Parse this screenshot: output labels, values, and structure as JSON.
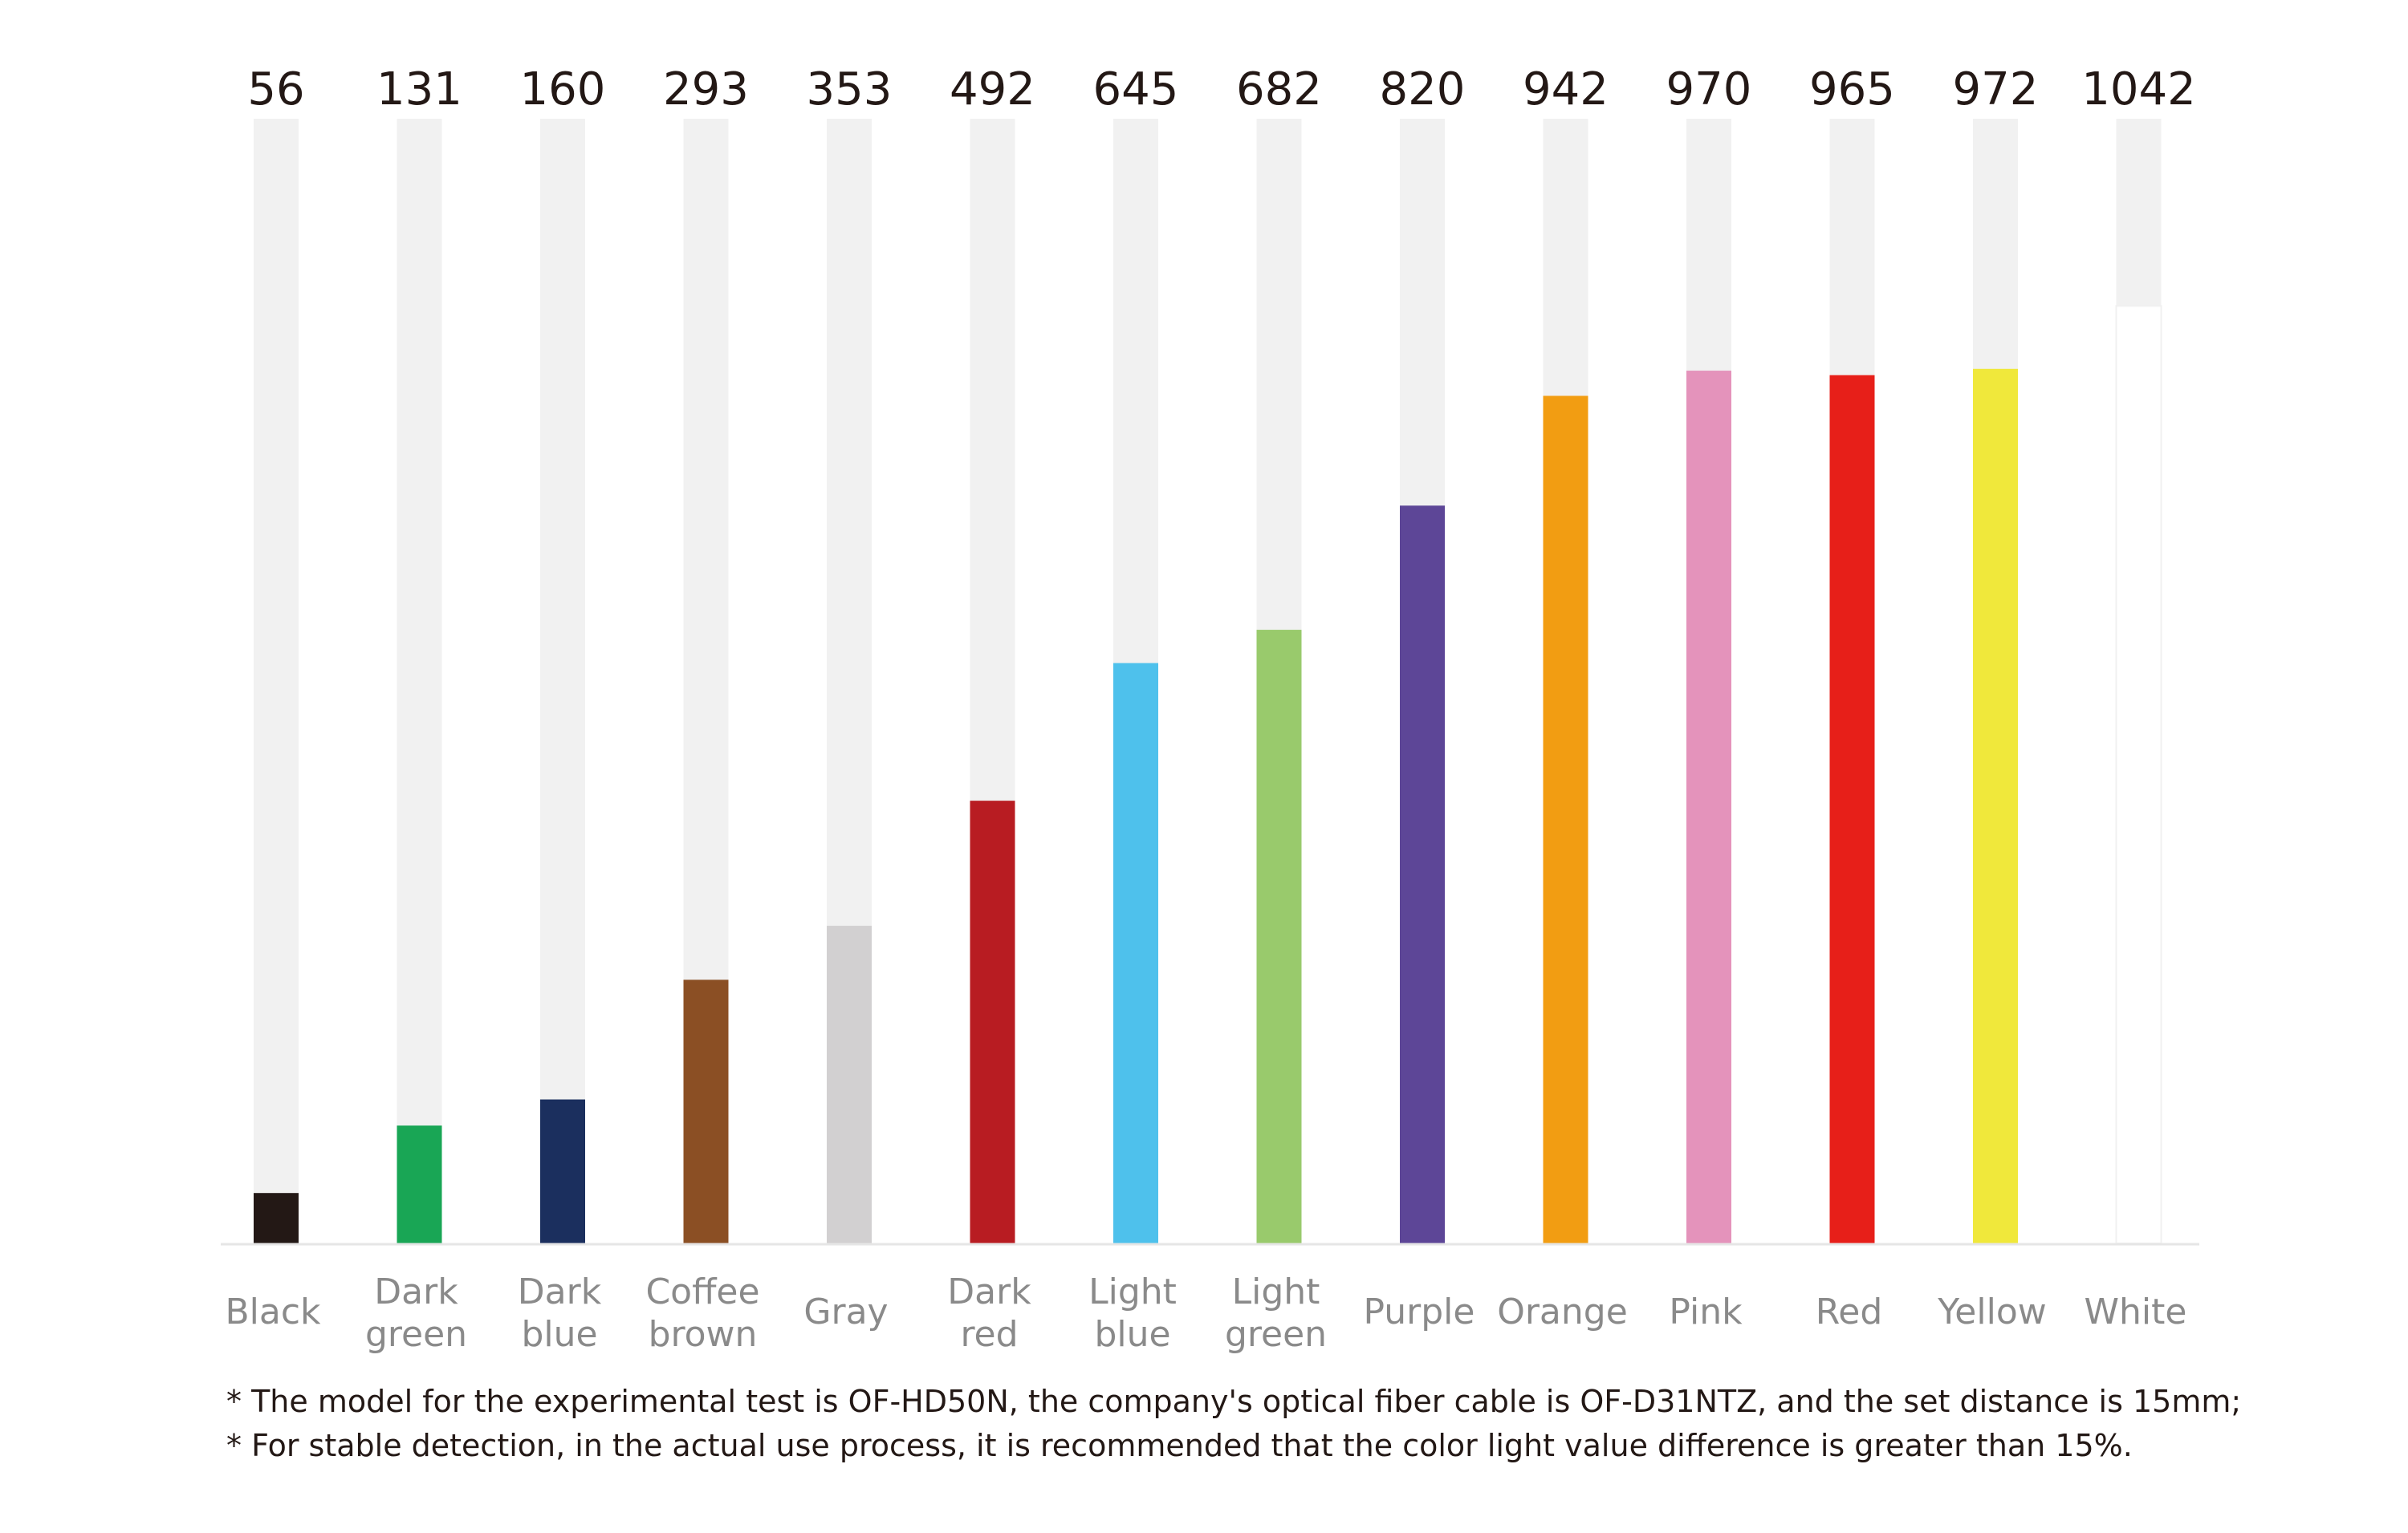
{
  "chart_data": {
    "type": "bar",
    "title": "",
    "xlabel": "",
    "ylabel": "",
    "ylim": [
      0,
      1250
    ],
    "grid": false,
    "legend": "none",
    "track_color": "#f1f1f1",
    "baseline_color": "#e6e6e6",
    "categories": [
      {
        "label": [
          "Black"
        ],
        "value": 56,
        "color": "#231815"
      },
      {
        "label": [
          "Dark",
          "green"
        ],
        "value": 131,
        "color": "#19a655"
      },
      {
        "label": [
          "Dark",
          "blue"
        ],
        "value": 160,
        "color": "#1b2f5e"
      },
      {
        "label": [
          "Coffee",
          "brown"
        ],
        "value": 293,
        "color": "#8b4f24"
      },
      {
        "label": [
          "Gray"
        ],
        "value": 353,
        "color": "#d2d0d1"
      },
      {
        "label": [
          "Dark",
          "red"
        ],
        "value": 492,
        "color": "#b81c22"
      },
      {
        "label": [
          "Light",
          "blue"
        ],
        "value": 645,
        "color": "#4ec1ec"
      },
      {
        "label": [
          "Light",
          "green"
        ],
        "value": 682,
        "color": "#99ca6c"
      },
      {
        "label": [
          "Purple"
        ],
        "value": 820,
        "color": "#5d4697"
      },
      {
        "label": [
          "Orange"
        ],
        "value": 942,
        "color": "#f29d12"
      },
      {
        "label": [
          "Pink"
        ],
        "value": 970,
        "color": "#e493bb"
      },
      {
        "label": [
          "Red"
        ],
        "value": 965,
        "color": "#e71f19"
      },
      {
        "label": [
          "Yellow"
        ],
        "value": 972,
        "color": "#f0e83b"
      },
      {
        "label": [
          "White"
        ],
        "value": 1042,
        "color": "#ffffff"
      }
    ]
  },
  "notes": [
    "* The model for the experimental test is OF-HD50N, the company's optical fiber cable is OF-D31NTZ, and the set distance is 15mm;",
    "* For stable detection, in the actual use process, it is recommended that the color light value difference is greater than 15%."
  ]
}
